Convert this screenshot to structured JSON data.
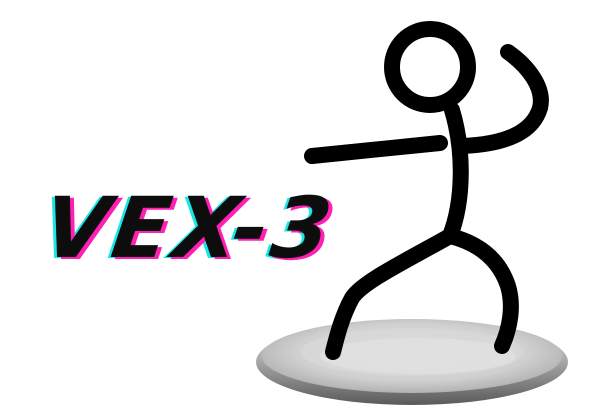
{
  "game": {
    "title": "VEX-3"
  },
  "icons": {
    "character": "stickman-icon",
    "platform": "plate-icon"
  },
  "colors": {
    "title": "#0d0d0d",
    "title_glitch_cyan": "#19e6e6",
    "title_glitch_magenta": "#ff1fb4",
    "stickman": "#000000",
    "plate": "#c8c8c8",
    "background": "#ffffff"
  }
}
